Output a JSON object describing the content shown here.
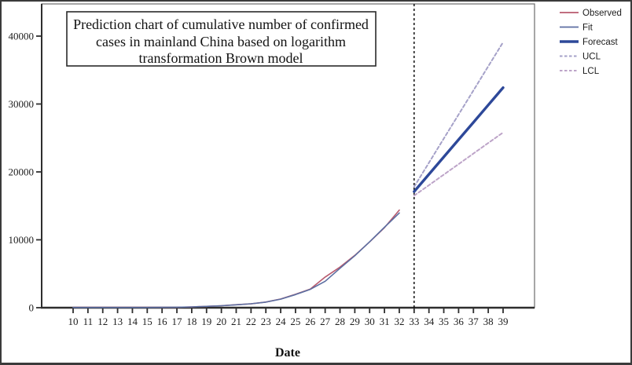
{
  "figure": {
    "title_lines": [
      "Prediction chart of cumulative number of confirmed",
      "cases in mainland China based on logarithm",
      "transformation Brown model"
    ]
  },
  "colors": {
    "observed": "#b85a6e",
    "fit": "#5b6ea1",
    "forecast": "#2d4899",
    "ucl": "#a5a1c8",
    "lcl": "#bda4c8",
    "axis": "#2e2e2e",
    "reference_line": "#000000"
  },
  "chart_data": {
    "type": "line",
    "title": "Prediction chart of cumulative number of confirmed cases in mainland China based on logarithm transformation Brown model",
    "xlabel": "Date",
    "ylabel": "",
    "grid": false,
    "legend_position": "top-right-outside",
    "xlim": [
      10,
      39
    ],
    "ylim": [
      0,
      40000
    ],
    "y_ticks": [
      0,
      10000,
      20000,
      30000,
      40000
    ],
    "x_ticks": [
      10,
      11,
      12,
      13,
      14,
      15,
      16,
      17,
      18,
      19,
      20,
      21,
      22,
      23,
      24,
      25,
      26,
      27,
      28,
      29,
      30,
      31,
      32,
      33,
      34,
      35,
      36,
      37,
      38,
      39
    ],
    "forecast_start_line_x": 33,
    "series": [
      {
        "name": "Observed",
        "style": "solid",
        "width": 1.6,
        "color": "#b85a6e",
        "x": [
          10,
          11,
          12,
          13,
          14,
          15,
          16,
          17,
          18,
          19,
          20,
          21,
          22,
          23,
          24,
          25,
          26,
          27,
          28,
          29,
          30,
          31,
          32
        ],
        "y": [
          41,
          41,
          41,
          41,
          41,
          41,
          45,
          62,
          121,
          198,
          291,
          440,
          571,
          830,
          1287,
          1975,
          2744,
          4515,
          5974,
          7711,
          9692,
          11791,
          14380
        ]
      },
      {
        "name": "Fit",
        "style": "solid",
        "width": 1.6,
        "color": "#5b6ea1",
        "x": [
          10,
          11,
          12,
          13,
          14,
          15,
          16,
          17,
          18,
          19,
          20,
          21,
          22,
          23,
          24,
          25,
          26,
          27,
          28,
          29,
          30,
          31,
          32
        ],
        "y": [
          40,
          40,
          40,
          40,
          40,
          40,
          48,
          65,
          115,
          195,
          285,
          430,
          580,
          820,
          1260,
          1930,
          2700,
          3900,
          5800,
          7650,
          9700,
          11850,
          13950
        ]
      },
      {
        "name": "Forecast",
        "style": "solid",
        "width": 3.4,
        "color": "#2d4899",
        "x": [
          33,
          34,
          35,
          36,
          37,
          38,
          39
        ],
        "y": [
          17100,
          19650,
          22200,
          24750,
          27300,
          29850,
          32400
        ]
      },
      {
        "name": "UCL",
        "style": "dashed",
        "width": 2,
        "color": "#a5a1c8",
        "x": [
          33,
          34,
          35,
          36,
          37,
          38,
          39
        ],
        "y": [
          17800,
          21350,
          24900,
          28450,
          32000,
          35550,
          39100
        ]
      },
      {
        "name": "LCL",
        "style": "dashed",
        "width": 2,
        "color": "#bda4c8",
        "x": [
          33,
          34,
          35,
          36,
          37,
          38,
          39
        ],
        "y": [
          16500,
          18050,
          19600,
          21150,
          22700,
          24250,
          25800
        ]
      }
    ]
  }
}
